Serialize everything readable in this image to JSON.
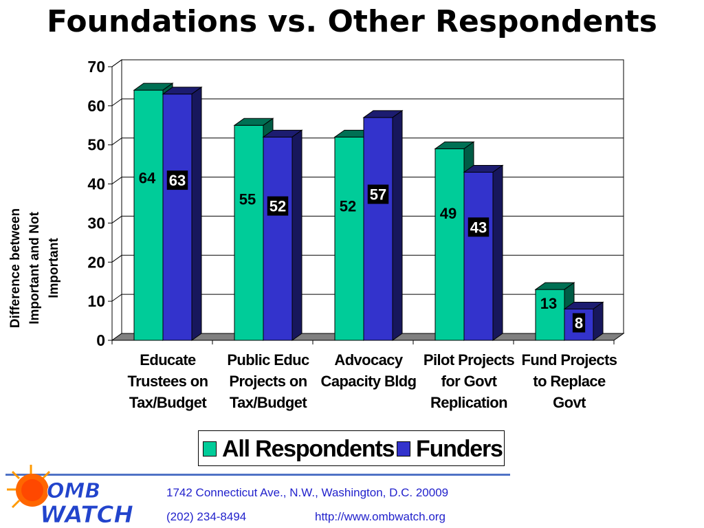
{
  "title": "Foundations vs. Other Respondents",
  "chart_data": {
    "type": "bar",
    "title": "",
    "ylabel": "Difference between Important and Not Important",
    "xlabel": "",
    "ylim": [
      0,
      70
    ],
    "yticks": [
      0,
      10,
      20,
      30,
      40,
      50,
      60,
      70
    ],
    "grid": true,
    "legend_position": "bottom",
    "categories": [
      [
        "Educate",
        "Trustees on",
        "Tax/Budget"
      ],
      [
        "Public Educ",
        "Projects on",
        "Tax/Budget"
      ],
      [
        "Advocacy",
        "Capacity Bldg"
      ],
      [
        "Pilot Projects",
        "for Govt",
        "Replication"
      ],
      [
        "Fund Projects",
        "to Replace",
        "Govt"
      ]
    ],
    "series": [
      {
        "name": "All Respondents",
        "color": "#00cc99",
        "values": [
          64,
          55,
          52,
          49,
          13
        ]
      },
      {
        "name": "Funders",
        "color": "#3333cc",
        "values": [
          63,
          52,
          57,
          43,
          8
        ]
      }
    ]
  },
  "legend": {
    "all_label": "All Respondents",
    "funders_label": "Funders",
    "all_color": "#00cc99",
    "funders_color": "#3333cc"
  },
  "footer": {
    "logo_top": "OMB",
    "logo_bottom": "WATCH",
    "address": "1742 Connecticut Ave., N.W., Washington, D.C. 20009",
    "phone": "(202) 234-8494",
    "url": "http://www.ombwatch.org"
  }
}
